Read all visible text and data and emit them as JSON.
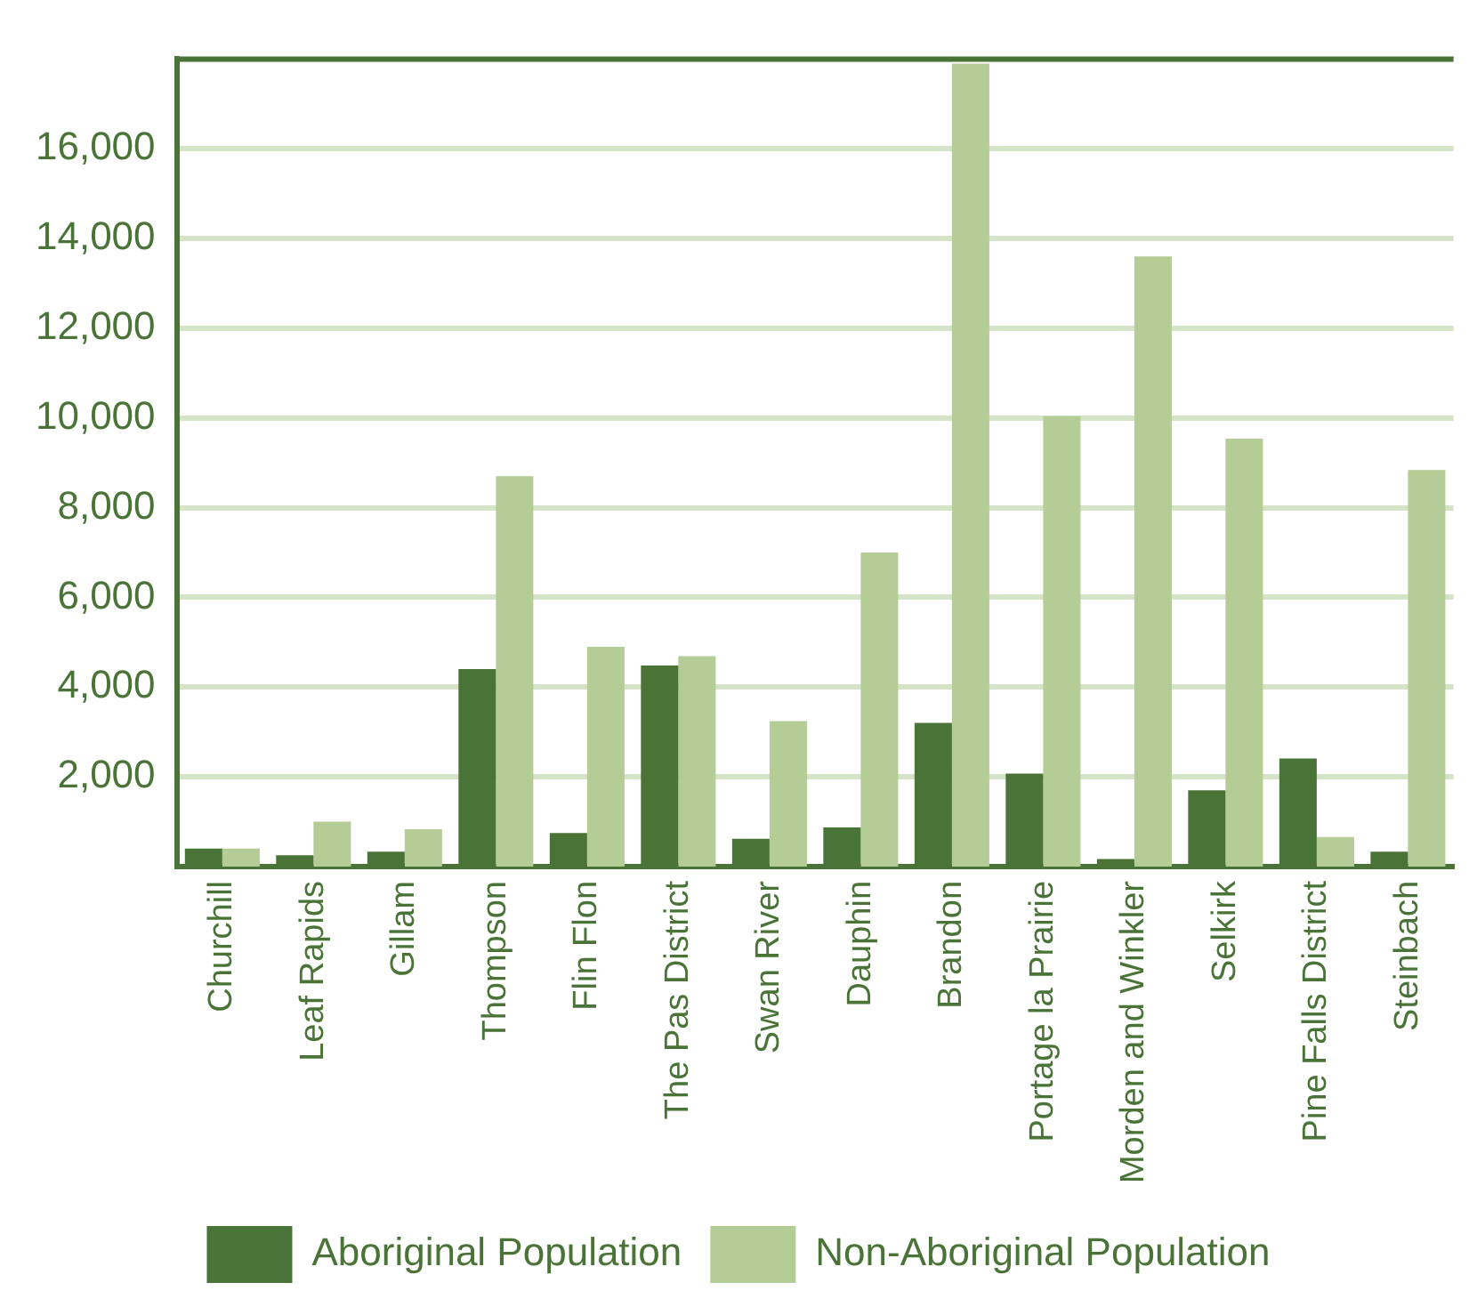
{
  "chart_data": {
    "type": "bar",
    "categories": [
      "Churchill",
      "Leaf Rapids",
      "Gillam",
      "Thompson",
      "Flin Flon",
      "The Pas District",
      "Swan River",
      "Dauphin",
      "Brandon",
      "Portage la Prairie",
      "Morden and Winkler",
      "Selkirk",
      "Pine Falls District",
      "Steinbach"
    ],
    "series": [
      {
        "name": "Aboriginal Population",
        "color": "#4a7337",
        "values": [
          400,
          250,
          330,
          4400,
          750,
          4480,
          620,
          870,
          3200,
          2070,
          170,
          1700,
          2410,
          330
        ]
      },
      {
        "name": "Non-Aboriginal Population",
        "color": "#b4cc96",
        "values": [
          400,
          1000,
          830,
          8700,
          4900,
          4690,
          3240,
          7000,
          17900,
          10040,
          13600,
          9540,
          660,
          8840
        ]
      }
    ],
    "ylim": [
      0,
      18000
    ],
    "yticks": [
      {
        "value": 2000,
        "label": "2,000"
      },
      {
        "value": 4000,
        "label": "4,000"
      },
      {
        "value": 6000,
        "label": "6,000"
      },
      {
        "value": 8000,
        "label": "8,000"
      },
      {
        "value": 10000,
        "label": "10,000"
      },
      {
        "value": 12000,
        "label": "12,000"
      },
      {
        "value": 14000,
        "label": "14,000"
      },
      {
        "value": 16000,
        "label": "16,000"
      }
    ],
    "grid": "y",
    "legend": "bottom"
  }
}
